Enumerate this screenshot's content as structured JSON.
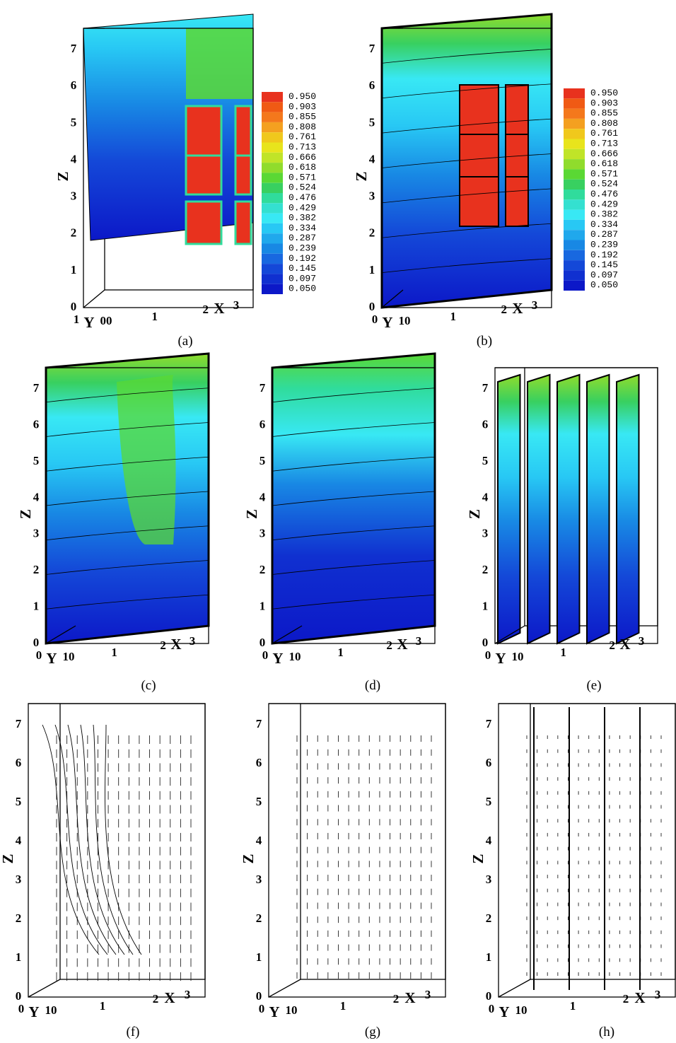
{
  "legend": {
    "levels": [
      "0.950",
      "0.903",
      "0.855",
      "0.808",
      "0.761",
      "0.713",
      "0.666",
      "0.618",
      "0.571",
      "0.524",
      "0.476",
      "0.429",
      "0.382",
      "0.334",
      "0.287",
      "0.239",
      "0.192",
      "0.145",
      "0.097",
      "0.050"
    ],
    "colors": [
      "#e8321e",
      "#f05a14",
      "#f4781c",
      "#f4a020",
      "#f0c81c",
      "#e8e41c",
      "#c0e428",
      "#90dc2c",
      "#5ad834",
      "#38d060",
      "#30dc9c",
      "#34e0d0",
      "#38e8f4",
      "#28c8f4",
      "#20a8ec",
      "#1888e4",
      "#1868e0",
      "#1448d8",
      "#1030d0",
      "#0c18c8"
    ]
  },
  "panels": [
    {
      "caption": "(a)",
      "z_ticks": [
        "0",
        "1",
        "2",
        "3",
        "4",
        "5",
        "6",
        "7"
      ],
      "z_label": "Z",
      "bottom": {
        "y_ticks": "1",
        "y_label": "Y",
        "y_end": "00",
        "x_ticks": [
          "1",
          "2"
        ],
        "x_label": "X",
        "x_end": "3"
      }
    },
    {
      "caption": "(b)",
      "z_ticks": [
        "0",
        "1",
        "2",
        "3",
        "4",
        "5",
        "6",
        "7"
      ],
      "z_label": "Z",
      "bottom": {
        "y_ticks": "0",
        "y_label": "Y",
        "y_end": "10",
        "x_ticks": [
          "1",
          "2"
        ],
        "x_label": "X",
        "x_end": "3"
      }
    },
    {
      "caption": "(c)",
      "z_ticks": [
        "0",
        "1",
        "2",
        "3",
        "4",
        "5",
        "6",
        "7"
      ],
      "z_label": "Z",
      "bottom": {
        "y_ticks": "0",
        "y_label": "Y",
        "y_end": "10",
        "x_ticks": [
          "1",
          "2"
        ],
        "x_label": "X",
        "x_end": "3"
      }
    },
    {
      "caption": "(d)",
      "z_ticks": [
        "0",
        "1",
        "2",
        "3",
        "4",
        "5",
        "6",
        "7"
      ],
      "z_label": "Z",
      "bottom": {
        "y_ticks": "0",
        "y_label": "Y",
        "y_end": "10",
        "x_ticks": [
          "1",
          "2"
        ],
        "x_label": "X",
        "x_end": "3"
      }
    },
    {
      "caption": "(e)",
      "z_ticks": [
        "0",
        "1",
        "2",
        "3",
        "4",
        "5",
        "6",
        "7"
      ],
      "z_label": "Z",
      "bottom": {
        "y_ticks": "0",
        "y_label": "Y",
        "y_end": "10",
        "x_ticks": [
          "1",
          "2"
        ],
        "x_label": "X",
        "x_end": "3"
      }
    },
    {
      "caption": "(f)",
      "z_ticks": [
        "0",
        "1",
        "2",
        "3",
        "4",
        "5",
        "6",
        "7"
      ],
      "z_label": "Z",
      "bottom": {
        "y_ticks": "0",
        "y_label": "Y",
        "y_end": "10",
        "x_ticks": [
          "1",
          "2"
        ],
        "x_label": "X",
        "x_end": "3"
      }
    },
    {
      "caption": "(g)",
      "z_ticks": [
        "0",
        "1",
        "2",
        "3",
        "4",
        "5",
        "6",
        "7"
      ],
      "z_label": "Z",
      "bottom": {
        "y_ticks": "0",
        "y_label": "Y",
        "y_end": "10",
        "x_ticks": [
          "1",
          "2"
        ],
        "x_label": "X",
        "x_end": "3"
      }
    },
    {
      "caption": "(h)",
      "z_ticks": [
        "0",
        "1",
        "2",
        "3",
        "4",
        "5",
        "6",
        "7"
      ],
      "z_label": "Z",
      "bottom": {
        "y_ticks": "0",
        "y_label": "Y",
        "y_end": "10",
        "x_ticks": [
          "1",
          "2"
        ],
        "x_label": "X",
        "x_end": "3"
      }
    }
  ]
}
